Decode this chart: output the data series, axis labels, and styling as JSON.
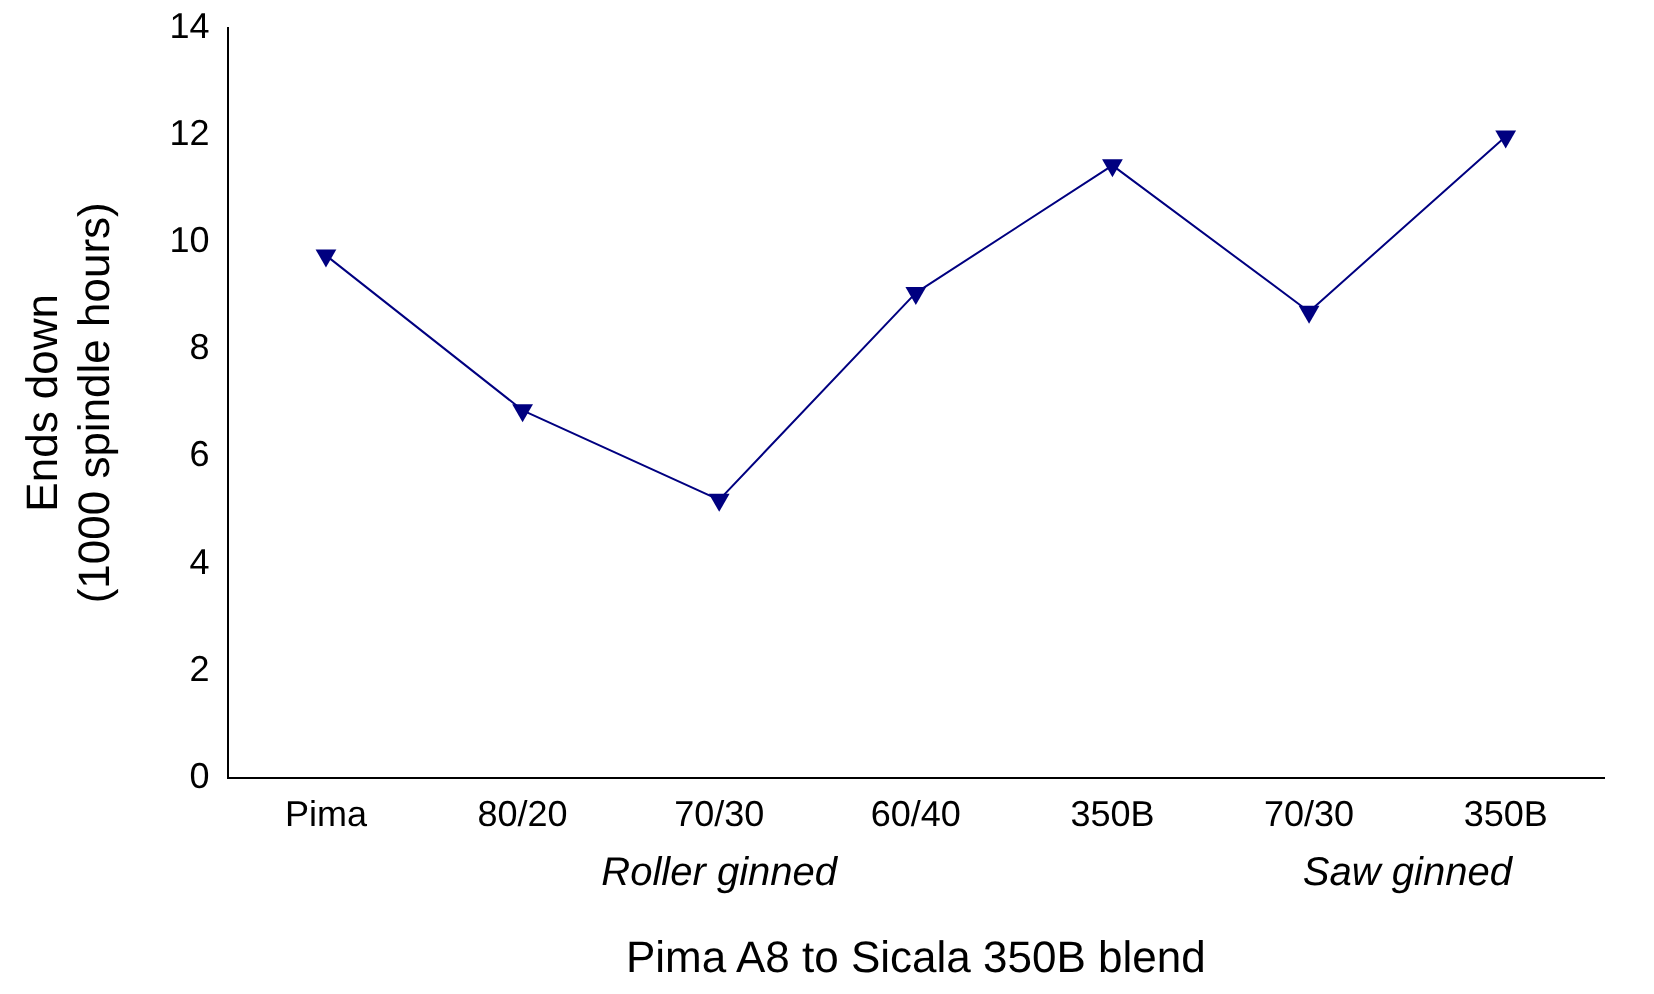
{
  "chart_data": {
    "type": "line",
    "xlabel": "Pima A8 to Sicala 350B blend",
    "ylabel": "Ends down\n(1000 spindle hours)",
    "categories": [
      "Pima",
      "80/20",
      "70/30",
      "60/40",
      "350B",
      "70/30",
      "350B"
    ],
    "series": [
      {
        "color": "#000080",
        "values": [
          9.75,
          6.86,
          5.19,
          9.05,
          11.43,
          8.7,
          11.97
        ]
      }
    ],
    "ylim": [
      0,
      14
    ],
    "yticks": [
      0,
      2,
      4,
      6,
      8,
      10,
      12,
      14
    ],
    "grid": false,
    "legend": false,
    "marker": "triangle",
    "line_style": "solid",
    "annotations": [
      "Roller ginned",
      "Saw ginned"
    ]
  }
}
